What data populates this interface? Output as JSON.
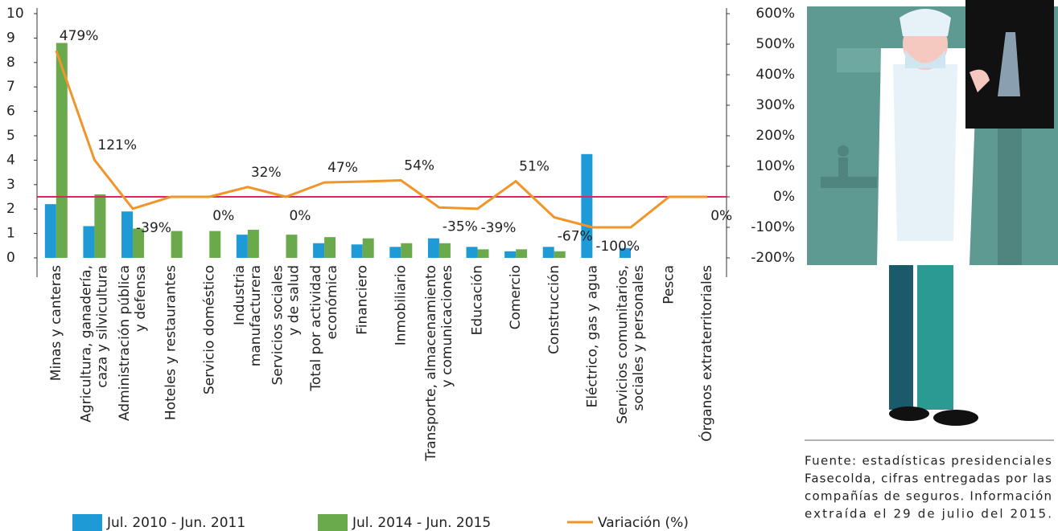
{
  "chart_data": {
    "type": "bar",
    "categories": [
      [
        "Minas y canteras"
      ],
      [
        "Agricultura, ganadería,",
        "caza y silvicultura"
      ],
      [
        "Administración pública",
        "y defensa"
      ],
      [
        "Hoteles y restaurantes"
      ],
      [
        "Servicio doméstico"
      ],
      [
        "Industria",
        "manufacturera"
      ],
      [
        "Servicios sociales",
        "y de salud"
      ],
      [
        "Total por actividad",
        "económica"
      ],
      [
        "Financiero"
      ],
      [
        "Inmobiliario"
      ],
      [
        "Transporte, almacenamiento",
        "y comunicaciones"
      ],
      [
        "Educación"
      ],
      [
        "Comercio"
      ],
      [
        "Construcción"
      ],
      [
        "Eléctrico, gas y agua"
      ],
      [
        "Servicios comunitarios,",
        "sociales y personales"
      ],
      [
        "Pesca"
      ],
      [
        "Órganos extraterritoriales"
      ]
    ],
    "series": [
      {
        "name": "Jul. 2010 - Jun. 2011",
        "color": "#1e9ad6",
        "values": [
          2.2,
          1.3,
          1.9,
          0,
          0,
          0.95,
          0,
          0.6,
          0.55,
          0.45,
          0.8,
          0.45,
          0.27,
          0.45,
          4.25,
          0.4,
          0,
          0
        ]
      },
      {
        "name": "Jul. 2014 - Jun. 2015",
        "color": "#6aaa4c",
        "values": [
          8.8,
          2.6,
          1.2,
          1.1,
          1.1,
          1.15,
          0.95,
          0.85,
          0.8,
          0.6,
          0.6,
          0.35,
          0.35,
          0.27,
          0,
          0,
          0,
          0
        ]
      },
      {
        "name": "Variación (%)",
        "color": "#f0952a",
        "type": "line",
        "axis": "y2",
        "values": [
          479,
          121,
          -39,
          0,
          0,
          32,
          0,
          47,
          50,
          54,
          -35,
          -39,
          51,
          -67,
          -100,
          -100,
          0,
          0
        ],
        "value_labels": [
          "479%",
          "121%",
          "-39%",
          null,
          "0%",
          "32%",
          "0%",
          "47%",
          null,
          "54%",
          "-35%",
          "-39%",
          "51%",
          "-67%",
          "-100%",
          null,
          null,
          "0%"
        ]
      }
    ],
    "ylim": [
      0,
      10
    ],
    "yticks": [
      0,
      1,
      2,
      3,
      4,
      5,
      6,
      7,
      8,
      9,
      10
    ],
    "y2lim": [
      -200,
      600
    ],
    "y2ticks": [
      {
        "value": -200,
        "label": "-200%"
      },
      {
        "value": -100,
        "label": "-100%"
      },
      {
        "value": 0,
        "label": "0%"
      },
      {
        "value": 100,
        "label": "100%"
      },
      {
        "value": 200,
        "label": "200%"
      },
      {
        "value": 300,
        "label": "300%"
      },
      {
        "value": 400,
        "label": "400%"
      },
      {
        "value": 500,
        "label": "500%"
      },
      {
        "value": 600,
        "label": "600%"
      }
    ],
    "reference_line_color": "#e0245e",
    "note": [
      "Fuente: estadísticas presidenciales",
      "Fasecolda, cifras entregadas por las",
      "compañías de seguros. Información",
      "extraída el 29 de julio del 2015."
    ]
  }
}
